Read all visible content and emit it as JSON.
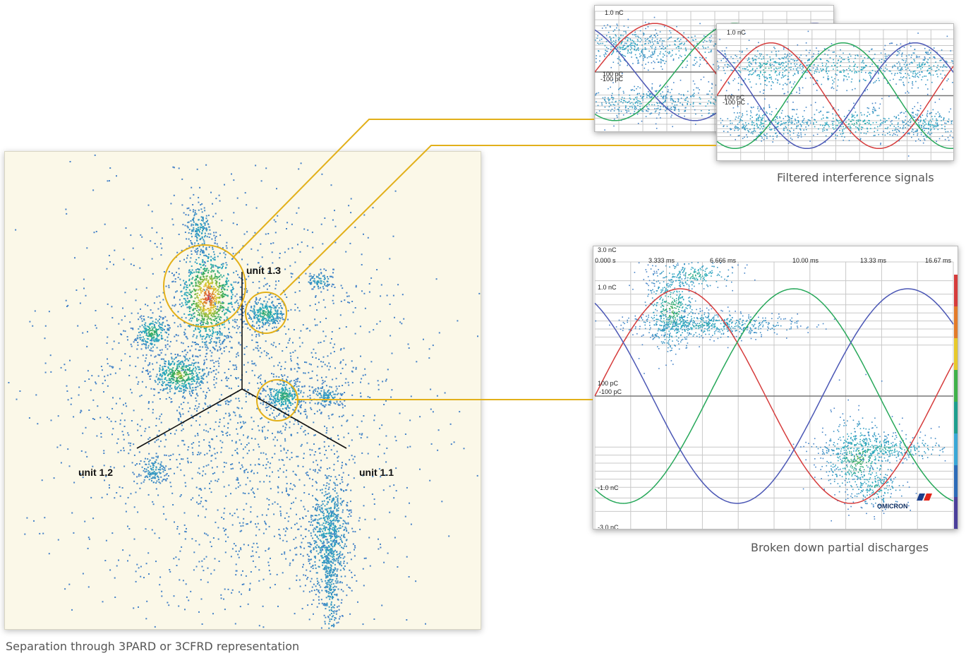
{
  "captions": {
    "scatter": "Separation through 3PARD or 3CFRD representation",
    "filtered": "Filtered interference signals",
    "broken": "Broken down partial discharges"
  },
  "chart_data": [
    {
      "type": "scatter",
      "title": "",
      "axes": [
        "unit 1.1",
        "unit 1.2",
        "unit 1.3"
      ],
      "clusters": [
        {
          "label": "main cluster (circled)",
          "intensity": "high"
        },
        {
          "label": "upper right cluster (circled)",
          "intensity": "medium"
        },
        {
          "label": "center right cluster (circled)",
          "intensity": "medium"
        },
        {
          "label": "left cluster",
          "intensity": "medium"
        },
        {
          "label": "center left cluster",
          "intensity": "medium"
        },
        {
          "label": "lower right tail",
          "intensity": "medium"
        }
      ]
    },
    {
      "type": "scatter",
      "title": "Filtered interference signals",
      "y_tick_labels": [
        "1.0 nC",
        "100 pC",
        "-100 pC"
      ],
      "series": [
        {
          "name": "",
          "color": "#d63c3c"
        },
        {
          "name": "",
          "color": "#27a85a"
        },
        {
          "name": "",
          "color": "#4b57b5"
        }
      ]
    },
    {
      "type": "scatter",
      "title": "Filtered interference signals",
      "y_tick_labels": [
        "1.0 nC",
        "100 pC",
        "-100 pC"
      ],
      "series": [
        {
          "name": "",
          "color": "#d63c3c"
        },
        {
          "name": "",
          "color": "#27a85a"
        },
        {
          "name": "",
          "color": "#4b57b5"
        }
      ]
    },
    {
      "type": "scatter",
      "title": "Broken down partial discharges",
      "x_tick_labels": [
        "0.000 s",
        "3.333 ms",
        "6.666 ms",
        "10.00 ms",
        "13.33 ms",
        "16.67 ms"
      ],
      "y_tick_labels": [
        "3.0 nC",
        "1.0 nC",
        "100 pC",
        "-100 pC",
        "-1.0 nC",
        "-3.0 nC"
      ],
      "xlim": [
        0,
        16.67
      ],
      "series": [
        {
          "name": "",
          "color": "#d63c3c"
        },
        {
          "name": "",
          "color": "#27a85a"
        },
        {
          "name": "",
          "color": "#4b57b5"
        }
      ],
      "logo": "OMICRON"
    }
  ],
  "labels": {
    "unit11": "unit 1.1",
    "unit12": "unit 1.2",
    "unit13": "unit 1.3",
    "small_top_label": "1.0 nC",
    "small_100": "100 pC",
    "small_m100": "-100 pC",
    "small2_top_label": "1.0 nC",
    "small2_100": "100 pC",
    "small2_m100": "-100 pC",
    "big_y": [
      "3.0 nC",
      "1.0 nC",
      "100 pC",
      "-100 pC",
      "-1.0 nC",
      "-3.0 nC"
    ],
    "big_x": [
      "0.000 s",
      "3.333 ms",
      "6.666 ms",
      "10.00 ms",
      "13.33 ms",
      "16.67 ms"
    ],
    "logo": "OMICRON"
  },
  "colors": {
    "connector": "#e2b01a",
    "sine_red": "#d63c3c",
    "sine_green": "#27a85a",
    "sine_blue": "#4b57b5"
  }
}
